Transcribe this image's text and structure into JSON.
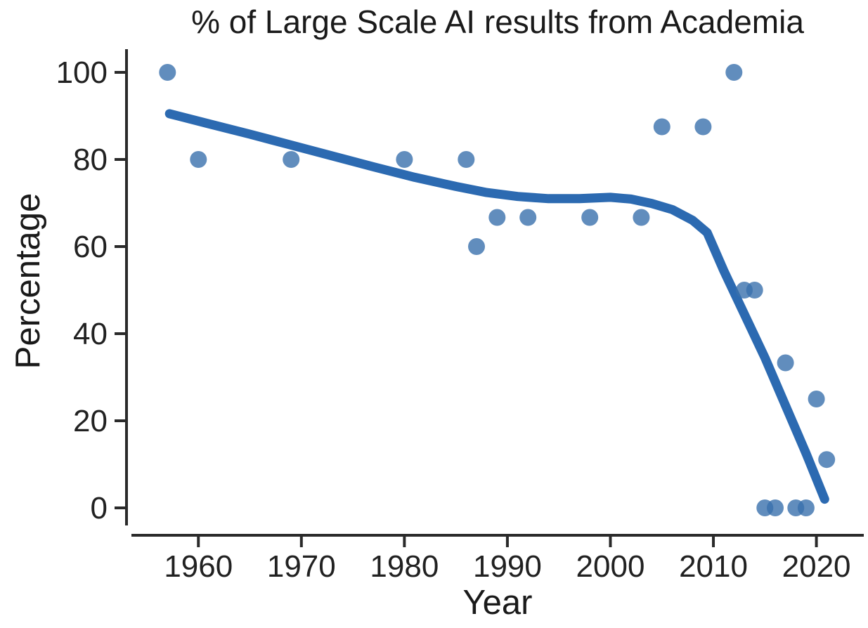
{
  "chart_data": {
    "type": "scatter",
    "title": "% of Large Scale AI results from Academia",
    "xlabel": "Year",
    "ylabel": "Percentage",
    "x_ticks": [
      1960,
      1970,
      1980,
      1990,
      2000,
      2010,
      2020
    ],
    "y_ticks": [
      0,
      20,
      40,
      60,
      80,
      100
    ],
    "xlim": [
      1953.5,
      2024.6
    ],
    "ylim": [
      0,
      100
    ],
    "grid": false,
    "legend": "none",
    "points": [
      {
        "year": 1957,
        "value": 100
      },
      {
        "year": 1960,
        "value": 80
      },
      {
        "year": 1969,
        "value": 80
      },
      {
        "year": 1980,
        "value": 80
      },
      {
        "year": 1986,
        "value": 80
      },
      {
        "year": 1987,
        "value": 60
      },
      {
        "year": 1989,
        "value": 66.7
      },
      {
        "year": 1992,
        "value": 66.7
      },
      {
        "year": 1998,
        "value": 66.7
      },
      {
        "year": 2003,
        "value": 66.7
      },
      {
        "year": 2005,
        "value": 87.5
      },
      {
        "year": 2009,
        "value": 87.5
      },
      {
        "year": 2012,
        "value": 100
      },
      {
        "year": 2013,
        "value": 50
      },
      {
        "year": 2014,
        "value": 50
      },
      {
        "year": 2015,
        "value": 0
      },
      {
        "year": 2016,
        "value": 0
      },
      {
        "year": 2017,
        "value": 33.3
      },
      {
        "year": 2018,
        "value": 0
      },
      {
        "year": 2019,
        "value": 0
      },
      {
        "year": 2020,
        "value": 25
      },
      {
        "year": 2021,
        "value": 11.1
      }
    ],
    "trend": [
      [
        1957.2,
        90.5
      ],
      [
        1961,
        88.2
      ],
      [
        1965,
        85.8
      ],
      [
        1969,
        83.3
      ],
      [
        1973,
        80.8
      ],
      [
        1977,
        78.3
      ],
      [
        1981,
        75.9
      ],
      [
        1985,
        73.8
      ],
      [
        1988,
        72.4
      ],
      [
        1991,
        71.5
      ],
      [
        1994,
        71.0
      ],
      [
        1997,
        71.0
      ],
      [
        2000,
        71.3
      ],
      [
        2002,
        70.9
      ],
      [
        2004,
        69.9
      ],
      [
        2006,
        68.5
      ],
      [
        2008,
        66.0
      ],
      [
        2009.4,
        63.2
      ],
      [
        2011,
        54.5
      ],
      [
        2013,
        44.5
      ],
      [
        2015,
        34.5
      ],
      [
        2017,
        23.5
      ],
      [
        2019,
        12.5
      ],
      [
        2020.8,
        2.0
      ]
    ],
    "colors": {
      "points": "#3a70ad",
      "points_opacity": 0.8,
      "trend_line": "#2c6ab1",
      "axis": "#2a2a2a",
      "text": "#1a1a1a",
      "background": "#ffffff"
    }
  }
}
